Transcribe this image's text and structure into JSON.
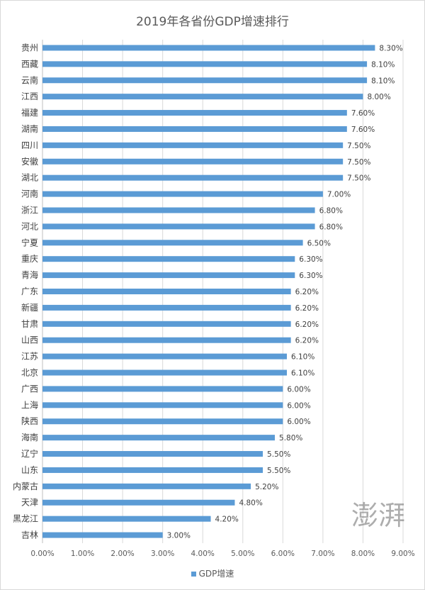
{
  "chart_data": {
    "type": "bar",
    "orientation": "horizontal",
    "title": "2019年各省份GDP增速排行",
    "categories": [
      "贵州",
      "西藏",
      "云南",
      "江西",
      "福建",
      "湖南",
      "四川",
      "安徽",
      "湖北",
      "河南",
      "浙江",
      "河北",
      "宁夏",
      "重庆",
      "青海",
      "广东",
      "新疆",
      "甘肃",
      "山西",
      "江苏",
      "北京",
      "广西",
      "上海",
      "陕西",
      "海南",
      "辽宁",
      "山东",
      "内蒙古",
      "天津",
      "黑龙江",
      "吉林"
    ],
    "series": [
      {
        "name": "GDP增速",
        "values": [
          8.3,
          8.1,
          8.1,
          8.0,
          7.6,
          7.6,
          7.5,
          7.5,
          7.5,
          7.0,
          6.8,
          6.8,
          6.5,
          6.3,
          6.3,
          6.2,
          6.2,
          6.2,
          6.2,
          6.1,
          6.1,
          6.0,
          6.0,
          6.0,
          5.8,
          5.5,
          5.5,
          5.2,
          4.8,
          4.2,
          3.0
        ],
        "labels": [
          "8.30%",
          "8.10%",
          "8.10%",
          "8.00%",
          "7.60%",
          "7.60%",
          "7.50%",
          "7.50%",
          "7.50%",
          "7.00%",
          "6.80%",
          "6.80%",
          "6.50%",
          "6.30%",
          "6.30%",
          "6.20%",
          "6.20%",
          "6.20%",
          "6.20%",
          "6.10%",
          "6.10%",
          "6.00%",
          "6.00%",
          "6.00%",
          "5.80%",
          "5.50%",
          "5.50%",
          "5.20%",
          "4.80%",
          "4.20%",
          "3.00%"
        ]
      }
    ],
    "xlim": [
      0,
      9
    ],
    "xticks": [
      0,
      1,
      2,
      3,
      4,
      5,
      6,
      7,
      8,
      9
    ],
    "xtick_labels": [
      "0.00%",
      "1.00%",
      "2.00%",
      "3.00%",
      "4.00%",
      "5.00%",
      "6.00%",
      "7.00%",
      "8.00%",
      "9.00%"
    ],
    "grid": true,
    "legend_position": "bottom",
    "colors": {
      "bar": "#5b9bd5",
      "grid": "#d9d9d9",
      "axis": "#bfbfbf",
      "text": "#404040"
    }
  },
  "watermark": "澎湃"
}
